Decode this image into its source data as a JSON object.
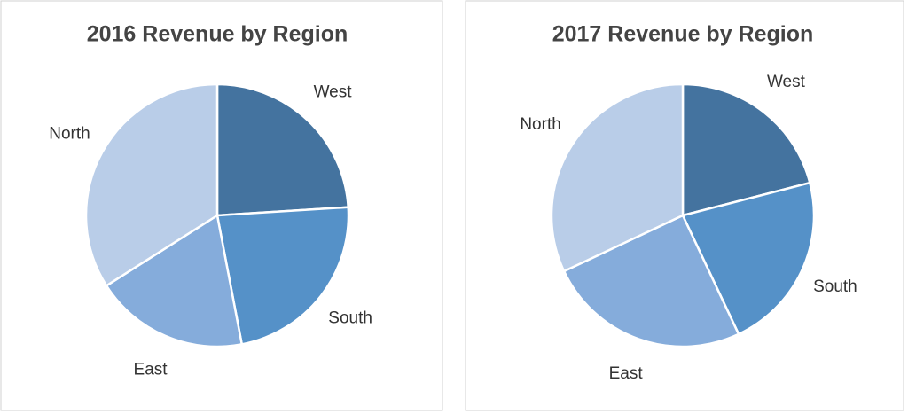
{
  "chart_data": [
    {
      "type": "pie",
      "title": "2016 Revenue by Region",
      "categories": [
        "West",
        "South",
        "East",
        "North"
      ],
      "values": [
        24,
        23,
        19,
        34
      ],
      "colors": [
        "#44739f",
        "#5591c8",
        "#85acdb",
        "#b9cde8"
      ]
    },
    {
      "type": "pie",
      "title": "2017 Revenue by Region",
      "categories": [
        "West",
        "South",
        "East",
        "North"
      ],
      "values": [
        21,
        22,
        25,
        32
      ],
      "colors": [
        "#44739f",
        "#5591c8",
        "#85acdb",
        "#b9cde8"
      ]
    }
  ]
}
